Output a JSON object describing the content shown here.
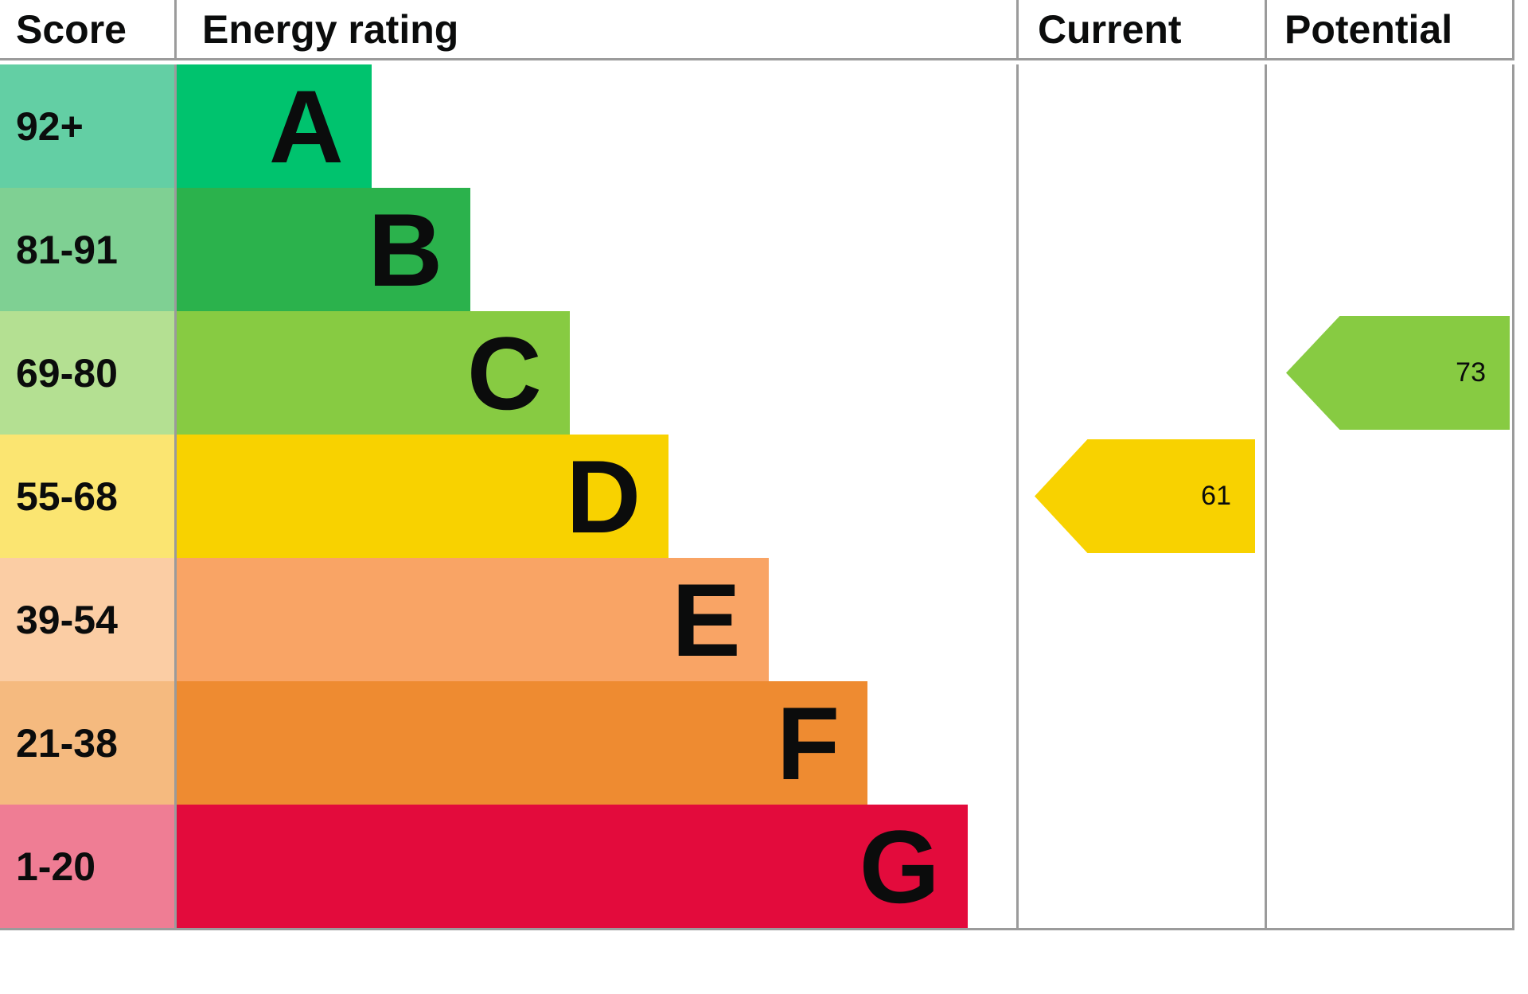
{
  "header": {
    "score": "Score",
    "energy_rating": "Energy rating",
    "current": "Current",
    "potential": "Potential"
  },
  "chart_data": {
    "type": "bar",
    "subtype": "epc-energy-rating",
    "columns": [
      "Score",
      "Energy rating",
      "Current",
      "Potential"
    ],
    "bands": [
      {
        "letter": "A",
        "score": "92+",
        "bar_color": "#00c36e",
        "score_color": "#63cfa4",
        "bar_width_pct": 23.2
      },
      {
        "letter": "B",
        "score": "81-91",
        "bar_color": "#2bb24c",
        "score_color": "#7fd093",
        "bar_width_pct": 35.0
      },
      {
        "letter": "C",
        "score": "69-80",
        "bar_color": "#87cb42",
        "score_color": "#b4e092",
        "bar_width_pct": 46.8
      },
      {
        "letter": "D",
        "score": "55-68",
        "bar_color": "#f8d200",
        "score_color": "#fbe571",
        "bar_width_pct": 58.6
      },
      {
        "letter": "E",
        "score": "39-54",
        "bar_color": "#f9a465",
        "score_color": "#fbcda4",
        "bar_width_pct": 70.5
      },
      {
        "letter": "F",
        "score": "21-38",
        "bar_color": "#ee8b31",
        "score_color": "#f5ba7f",
        "bar_width_pct": 82.3
      },
      {
        "letter": "G",
        "score": "1-20",
        "bar_color": "#e30b3c",
        "score_color": "#ef7d94",
        "bar_width_pct": 94.2
      }
    ],
    "current": {
      "value": 61,
      "band": "D",
      "arrow_color": "#f8d200"
    },
    "potential": {
      "value": 73,
      "band": "C",
      "arrow_color": "#87cb42"
    }
  }
}
